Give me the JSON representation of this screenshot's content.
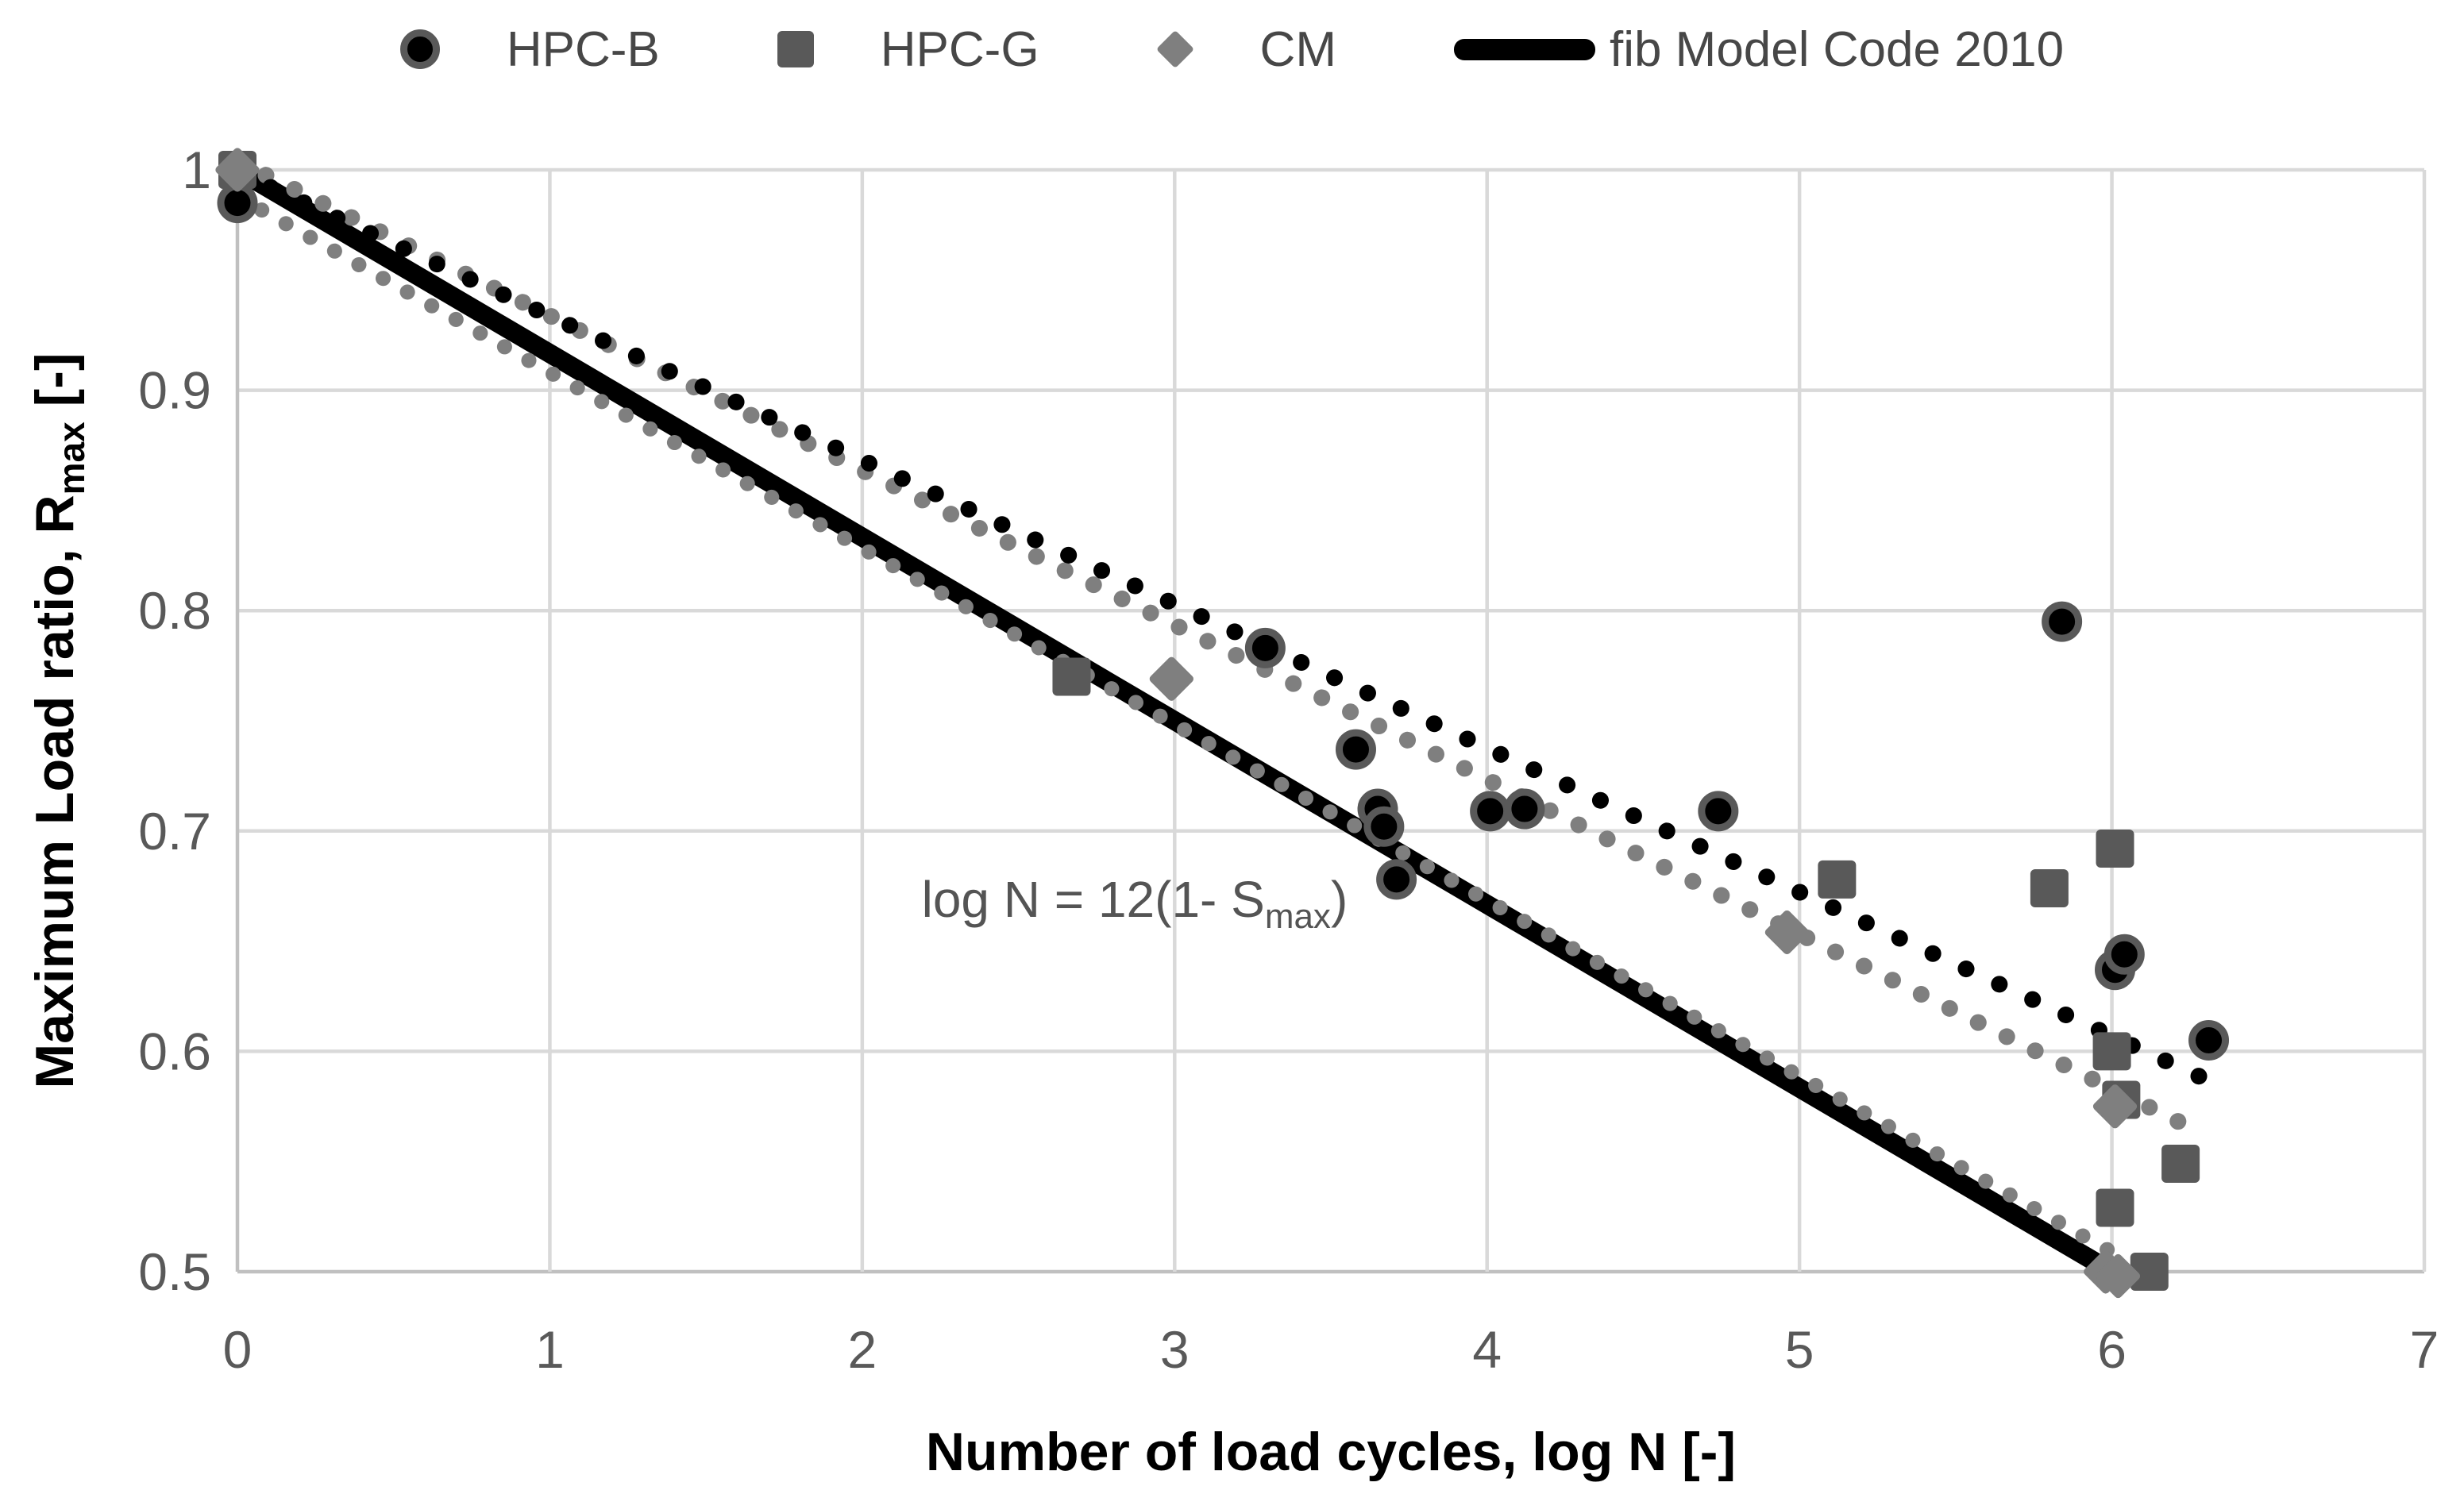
{
  "legend": {
    "items": [
      {
        "label": "HPC-B",
        "marker": "circle"
      },
      {
        "label": "HPC-G",
        "marker": "square"
      },
      {
        "label": "CM",
        "marker": "diamond"
      },
      {
        "label": "fib Model Code 2010",
        "marker": "line"
      }
    ]
  },
  "chart_data": {
    "type": "scatter",
    "title": "",
    "xlabel": "Number of load cycles, log N [-]",
    "ylabel": {
      "main": "Maximum Load ratio, R",
      "sub": "max",
      "after": " [-]"
    },
    "xlim": [
      0,
      7
    ],
    "ylim": [
      0.5,
      1.0
    ],
    "grid": true,
    "legend_position": "top",
    "x_ticks": [
      {
        "label": "0",
        "v": 0
      },
      {
        "label": "1",
        "v": 1
      },
      {
        "label": "2",
        "v": 2
      },
      {
        "label": "3",
        "v": 3
      },
      {
        "label": "4",
        "v": 4
      },
      {
        "label": "5",
        "v": 5
      },
      {
        "label": "6",
        "v": 6
      },
      {
        "label": "7",
        "v": 7
      }
    ],
    "y_ticks": [
      {
        "label": "1",
        "v": 1.0
      },
      {
        "label": "0.9",
        "v": 0.9
      },
      {
        "label": "0.8",
        "v": 0.8
      },
      {
        "label": "0.7",
        "v": 0.7
      },
      {
        "label": "0.6",
        "v": 0.6
      },
      {
        "label": "0.5",
        "v": 0.5
      }
    ],
    "annotation": {
      "before": "log N = 12(1- S",
      "sub": "max",
      "after": ")",
      "x": 2.19,
      "y": 0.661
    },
    "series": [
      {
        "name": "HPC-B",
        "marker": "circle",
        "fill": "#000000",
        "ring": "#595959",
        "points": [
          [
            0,
            0.985
          ],
          [
            3.29,
            0.783
          ],
          [
            3.58,
            0.737
          ],
          [
            3.65,
            0.71
          ],
          [
            3.67,
            0.702
          ],
          [
            3.71,
            0.678
          ],
          [
            4.01,
            0.709
          ],
          [
            4.12,
            0.71
          ],
          [
            4.74,
            0.709
          ],
          [
            5.84,
            0.795
          ],
          [
            6.01,
            0.637
          ],
          [
            6.04,
            0.644
          ],
          [
            6.31,
            0.605
          ]
        ]
      },
      {
        "name": "HPC-G",
        "marker": "square",
        "fill": "#595959",
        "points": [
          [
            0,
            1.0
          ],
          [
            2.67,
            0.77
          ],
          [
            5.12,
            0.678
          ],
          [
            5.8,
            0.674
          ],
          [
            6.01,
            0.692
          ],
          [
            6.0,
            0.6
          ],
          [
            6.03,
            0.578
          ],
          [
            6.01,
            0.529
          ],
          [
            6.12,
            0.5
          ],
          [
            6.22,
            0.549
          ]
        ]
      },
      {
        "name": "CM",
        "marker": "diamond",
        "fill": "#7f7f7f",
        "points": [
          [
            0,
            1.0
          ],
          [
            2.99,
            0.769
          ],
          [
            4.96,
            0.654
          ],
          [
            6.01,
            0.575
          ],
          [
            5.98,
            0.5
          ],
          [
            6.02,
            0.498
          ]
        ]
      }
    ],
    "trendlines": [
      {
        "name": "fib Model Code 2010",
        "style": "solid",
        "color": "#000000",
        "width": 24,
        "from": [
          0,
          1.0
        ],
        "to": [
          6.0,
          0.5
        ]
      },
      {
        "name": "CM trend",
        "style": "dotted",
        "color": "#7f7f7f",
        "width": 19,
        "gap": 35,
        "from": [
          0,
          0.988
        ],
        "to": [
          6.06,
          0.504
        ]
      },
      {
        "name": "HPC-G trend",
        "style": "dotted",
        "color": "#7f7f7f",
        "width": 21,
        "gap": 40,
        "from": [
          0,
          1.004
        ],
        "to": [
          6.3,
          0.562
        ]
      },
      {
        "name": "HPC-B trend",
        "style": "dotted",
        "color": "#000000",
        "width": 21,
        "gap": 46,
        "from": [
          0,
          0.999
        ],
        "to": [
          6.32,
          0.586
        ]
      }
    ],
    "colors": {
      "background": "#ffffff",
      "gridline": "#d9d9d9",
      "axis_line": "#c0c0c0",
      "tick_label": "#595959",
      "axis_title": "#000000",
      "legend_text": "#474747",
      "annotation_text": "#545454"
    }
  }
}
